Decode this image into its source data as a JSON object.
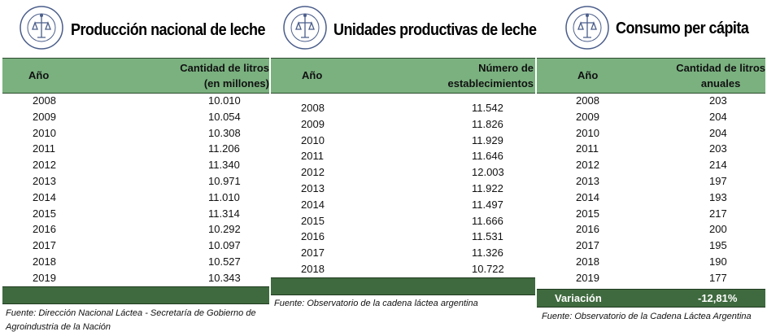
{
  "panels": [
    {
      "title": "Producción nacional de leche",
      "col1": "Año",
      "col2_line1": "Cantidad de litros",
      "col2_line2": "(en millones)",
      "rows": [
        {
          "year": "2008",
          "value": "10.010"
        },
        {
          "year": "2009",
          "value": "10.054"
        },
        {
          "year": "2010",
          "value": "10.308"
        },
        {
          "year": "2011",
          "value": "11.206"
        },
        {
          "year": "2012",
          "value": "11.340"
        },
        {
          "year": "2013",
          "value": "10.971"
        },
        {
          "year": "2014",
          "value": "11.010"
        },
        {
          "year": "2015",
          "value": "11.314"
        },
        {
          "year": "2016",
          "value": "10.292"
        },
        {
          "year": "2017",
          "value": "10.097"
        },
        {
          "year": "2018",
          "value": "10.527"
        },
        {
          "year": "2019",
          "value": "10.343"
        }
      ],
      "source_line1": "Fuente: Dirección Nacional Láctea - Secretaría de Gobierno de",
      "source_line2": "Agroindustria de la Nación"
    },
    {
      "title": "Unidades productivas de leche",
      "col1": "Año",
      "col2_line1": "Número de",
      "col2_line2": "establecimientos",
      "rows": [
        {
          "year": "2008",
          "value": "11.542"
        },
        {
          "year": "2009",
          "value": "11.826"
        },
        {
          "year": "2010",
          "value": "11.929"
        },
        {
          "year": "2011",
          "value": "11.646"
        },
        {
          "year": "2012",
          "value": "12.003"
        },
        {
          "year": "2013",
          "value": "11.922"
        },
        {
          "year": "2014",
          "value": "11.497"
        },
        {
          "year": "2015",
          "value": "11.666"
        },
        {
          "year": "2016",
          "value": "11.531"
        },
        {
          "year": "2017",
          "value": "11.326"
        },
        {
          "year": "2018",
          "value": "10.722"
        }
      ],
      "source_line1": "Fuente: Observatorio de la cadena láctea argentina"
    },
    {
      "title": "Consumo per cápita",
      "col1": "Año",
      "col2_line1": "Cantidad de litros",
      "col2_line2": "anuales",
      "rows": [
        {
          "year": "2008",
          "value": "203"
        },
        {
          "year": "2009",
          "value": "204"
        },
        {
          "year": "2010",
          "value": "204"
        },
        {
          "year": "2011",
          "value": "203"
        },
        {
          "year": "2012",
          "value": "214"
        },
        {
          "year": "2013",
          "value": "197"
        },
        {
          "year": "2014",
          "value": "193"
        },
        {
          "year": "2015",
          "value": "217"
        },
        {
          "year": "2016",
          "value": "200"
        },
        {
          "year": "2017",
          "value": "195"
        },
        {
          "year": "2018",
          "value": "190"
        },
        {
          "year": "2019",
          "value": "177"
        }
      ],
      "variation_label": "Variación",
      "variation_value": "-12,81%",
      "source_line1": "Fuente: Observatorio de la Cadena Láctea Argentina"
    }
  ],
  "logo_text": "BOLSA DE COMERCIO DE ROSARIO",
  "colors": {
    "header_green": "#7ab17f",
    "dark_green": "#3f6a3f"
  }
}
